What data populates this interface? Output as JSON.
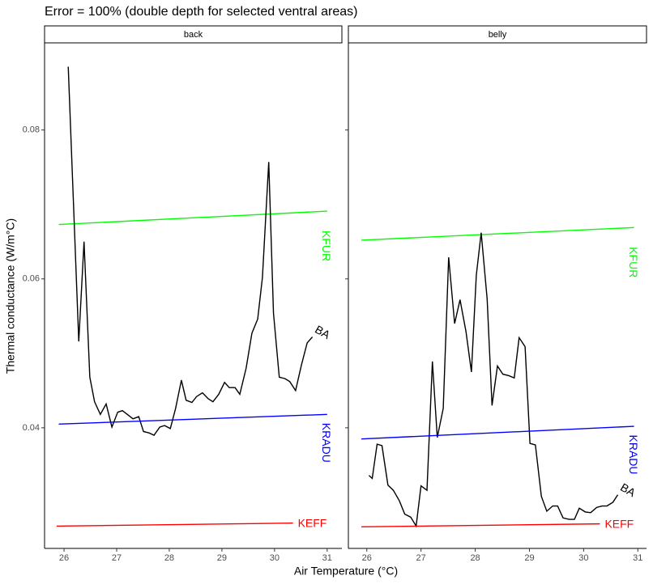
{
  "chart_data": [
    {
      "type": "line",
      "panel": "back",
      "title": "Error = 100% (double depth for selected ventral areas)",
      "x_label": "Air Temperature (°C)",
      "y_label": "Thermal conductance (W/m°C)",
      "xlim": [
        25.63,
        31.28
      ],
      "xticks": [
        26,
        27,
        28,
        29,
        30,
        31
      ],
      "ylim": [
        0.0238,
        0.0917
      ],
      "yticks": [
        0.04,
        0.06,
        0.08
      ],
      "series": [
        {
          "name": "KFUR",
          "color": "#00ff00",
          "x": [
            25.9,
            31.0
          ],
          "values": [
            0.0673,
            0.0691
          ]
        },
        {
          "name": "BA",
          "color": "#000000",
          "x": [
            26.08,
            26.28,
            26.38,
            26.49,
            26.58,
            26.69,
            26.8,
            26.91,
            27.02,
            27.11,
            27.22,
            27.31,
            27.42,
            27.51,
            27.62,
            27.71,
            27.82,
            27.91,
            28.02,
            28.12,
            28.23,
            28.32,
            28.43,
            28.52,
            28.63,
            28.74,
            28.83,
            28.94,
            29.05,
            29.14,
            29.25,
            29.34,
            29.46,
            29.57,
            29.68,
            29.77,
            29.89,
            29.98,
            30.09,
            30.2,
            30.29,
            30.4,
            30.51,
            30.62,
            30.72
          ],
          "values": [
            0.0885,
            0.0516,
            0.065,
            0.0468,
            0.0435,
            0.0418,
            0.0432,
            0.0401,
            0.0421,
            0.0423,
            0.0417,
            0.0412,
            0.0415,
            0.0395,
            0.0393,
            0.039,
            0.0401,
            0.0403,
            0.0399,
            0.0426,
            0.0464,
            0.0437,
            0.0434,
            0.0442,
            0.0447,
            0.0439,
            0.0435,
            0.0445,
            0.0461,
            0.0454,
            0.0454,
            0.0445,
            0.048,
            0.0527,
            0.0546,
            0.0602,
            0.0757,
            0.0554,
            0.0468,
            0.0466,
            0.0462,
            0.045,
            0.0484,
            0.0514,
            0.0522
          ]
        },
        {
          "name": "KRADU",
          "color": "#0000ff",
          "x": [
            25.9,
            31.0
          ],
          "values": [
            0.0405,
            0.0418
          ]
        },
        {
          "name": "KEFF",
          "color": "#ff0000",
          "x": [
            25.86,
            30.35
          ],
          "values": [
            0.0268,
            0.0272
          ]
        }
      ]
    },
    {
      "type": "line",
      "panel": "belly",
      "xlim": [
        25.66,
        31.16
      ],
      "xticks": [
        26,
        27,
        28,
        29,
        30,
        31
      ],
      "ylim": [
        0.0238,
        0.0917
      ],
      "yticks": [
        0.04,
        0.06,
        0.08
      ],
      "series": [
        {
          "name": "KFUR",
          "color": "#00ff00",
          "x": [
            25.9,
            30.93
          ],
          "values": [
            0.0652,
            0.0669
          ]
        },
        {
          "name": "BA",
          "color": "#000000",
          "x": [
            26.04,
            26.1,
            26.19,
            26.28,
            26.39,
            26.49,
            26.6,
            26.7,
            26.81,
            26.91,
            27.0,
            27.11,
            27.21,
            27.3,
            27.41,
            27.51,
            27.62,
            27.72,
            27.83,
            27.93,
            28.02,
            28.11,
            28.22,
            28.31,
            28.41,
            28.51,
            28.62,
            28.72,
            28.81,
            28.92,
            29.01,
            29.11,
            29.22,
            29.32,
            29.43,
            29.52,
            29.62,
            29.73,
            29.83,
            29.92,
            30.03,
            30.13,
            30.24,
            30.34,
            30.43,
            30.54,
            30.63
          ],
          "values": [
            0.0336,
            0.0332,
            0.0378,
            0.0376,
            0.0323,
            0.0316,
            0.0302,
            0.0284,
            0.028,
            0.0268,
            0.0322,
            0.0316,
            0.0489,
            0.0387,
            0.0426,
            0.0629,
            0.054,
            0.0572,
            0.0529,
            0.0475,
            0.0605,
            0.0662,
            0.0573,
            0.043,
            0.0483,
            0.0472,
            0.047,
            0.0467,
            0.0521,
            0.0509,
            0.0379,
            0.0377,
            0.0308,
            0.0288,
            0.0295,
            0.0295,
            0.0279,
            0.0277,
            0.0277,
            0.0292,
            0.0287,
            0.0286,
            0.0293,
            0.0295,
            0.0295,
            0.03,
            0.031
          ]
        },
        {
          "name": "KRADU",
          "color": "#0000ff",
          "x": [
            25.9,
            30.93
          ],
          "values": [
            0.0385,
            0.0402
          ]
        },
        {
          "name": "KEFF",
          "color": "#ff0000",
          "x": [
            25.9,
            30.3
          ],
          "values": [
            0.0267,
            0.0271
          ]
        }
      ]
    }
  ]
}
